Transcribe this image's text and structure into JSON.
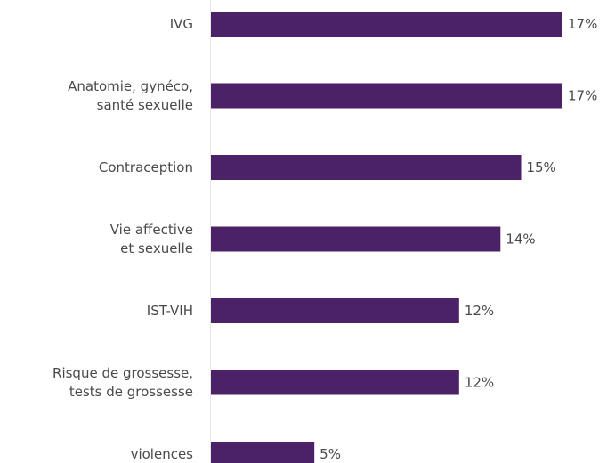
{
  "chart_data": {
    "type": "bar",
    "orientation": "horizontal",
    "title": "",
    "xlabel": "",
    "ylabel": "",
    "categories": [
      [
        "IVG"
      ],
      [
        "Anatomie, gynéco,",
        "santé sexuelle"
      ],
      [
        "Contraception"
      ],
      [
        "Vie affective",
        "et sexuelle"
      ],
      [
        "IST-VIH"
      ],
      [
        "Risque de grossesse,",
        "tests de grossesse"
      ],
      [
        "violences"
      ]
    ],
    "values": [
      17,
      17,
      15,
      14,
      12,
      12,
      5
    ],
    "value_labels": [
      "17%",
      "17%",
      "15%",
      "14%",
      "12%",
      "12%",
      "5%"
    ],
    "xlim": [
      0,
      17
    ],
    "grid": false,
    "legend": "none",
    "colors": {
      "bar": "#4b2168",
      "text": "#4a4a4a",
      "axis": "#e6e6e6"
    }
  }
}
